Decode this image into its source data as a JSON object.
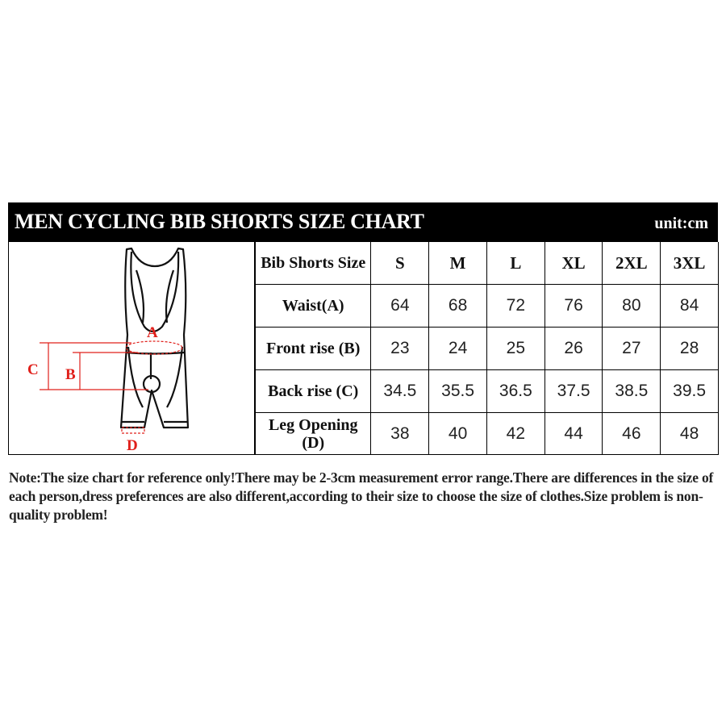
{
  "header": {
    "title": "MEN CYCLING BIB SHORTS SIZE CHART",
    "unit": "unit:cm"
  },
  "diagram": {
    "labels": {
      "a": "A",
      "b": "B",
      "c": "C",
      "d": "D"
    },
    "accent_color": "#e0201b"
  },
  "table": {
    "corner": "Bib Shorts Size",
    "sizes": [
      "S",
      "M",
      "L",
      "XL",
      "2XL",
      "3XL"
    ],
    "rows": [
      {
        "label": "Waist(A)",
        "values": [
          "64",
          "68",
          "72",
          "76",
          "80",
          "84"
        ]
      },
      {
        "label": "Front rise (B)",
        "values": [
          "23",
          "24",
          "25",
          "26",
          "27",
          "28"
        ]
      },
      {
        "label": "Back rise (C)",
        "values": [
          "34.5",
          "35.5",
          "36.5",
          "37.5",
          "38.5",
          "39.5"
        ]
      },
      {
        "label": "Leg Opening (D)",
        "values": [
          "38",
          "40",
          "42",
          "44",
          "46",
          "48"
        ]
      }
    ]
  },
  "note": {
    "prefix": "Note:",
    "text": "The size chart for reference only!There may be 2-3cm measurement error range.There are differences in the size of each person,dress preferences are also different,according to their size to choose the size of clothes.Size problem is  non-quality problem!"
  }
}
